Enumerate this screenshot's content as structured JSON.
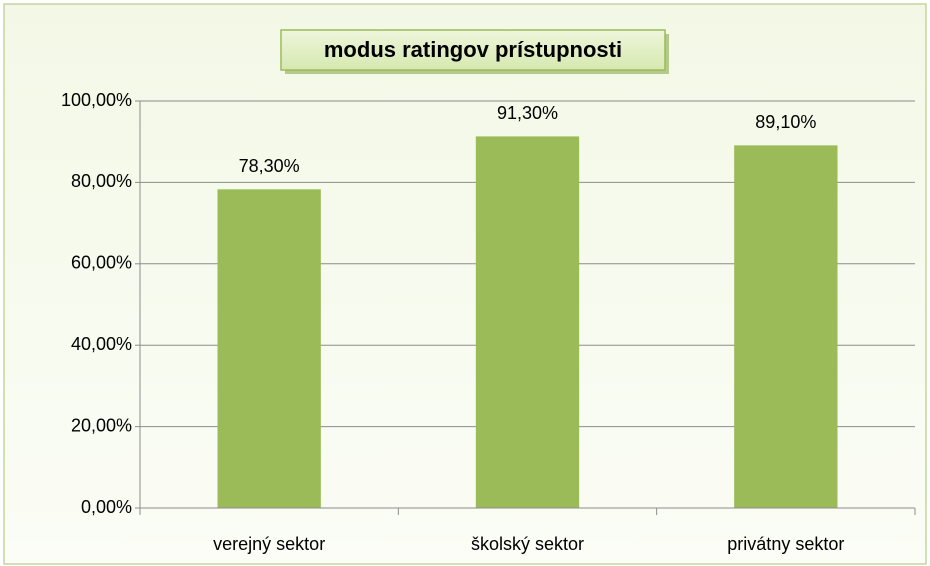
{
  "chart_data": {
    "type": "bar",
    "title": "modus ratingov prístupnosti",
    "categories": [
      "verejný sektor",
      "školský sektor",
      "privátny sektor"
    ],
    "values": [
      78.3,
      91.3,
      89.1
    ],
    "value_labels": [
      "78,30%",
      "91,30%",
      "89,10%"
    ],
    "color": "#9bbb59",
    "ylim": [
      0,
      100
    ],
    "yticks": [
      {
        "value": 0,
        "label": "0,00%"
      },
      {
        "value": 20,
        "label": "20,00%"
      },
      {
        "value": 40,
        "label": "40,00%"
      },
      {
        "value": 60,
        "label": "60,00%"
      },
      {
        "value": 80,
        "label": "80,00%"
      },
      {
        "value": 100,
        "label": "100,00%"
      }
    ],
    "grid": true
  }
}
